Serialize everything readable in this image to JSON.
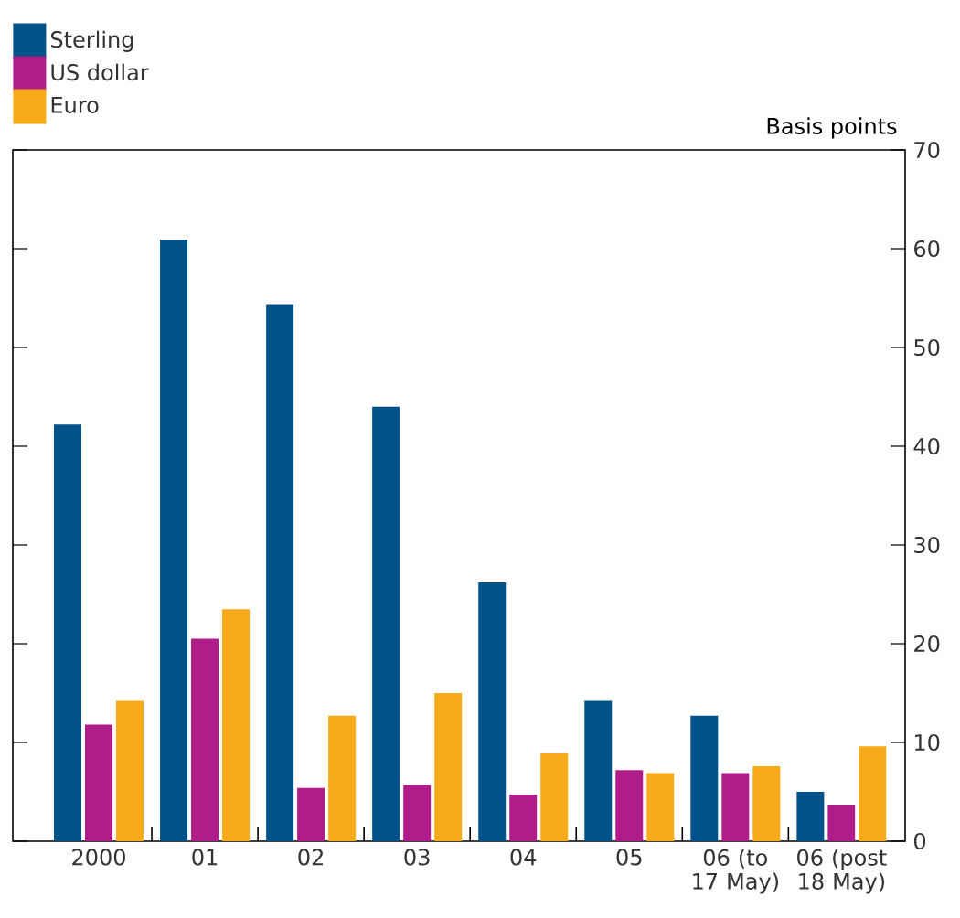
{
  "chart_data": {
    "type": "bar",
    "ylabel": "Basis points",
    "categories": [
      "2000",
      "01",
      "02",
      "03",
      "04",
      "05",
      "06 (to 17 May)",
      "06 (post 18 May)"
    ],
    "series": [
      {
        "name": "Sterling",
        "color": "#005289",
        "values": [
          42.2,
          60.9,
          54.3,
          44.0,
          26.2,
          14.2,
          12.7,
          5.0
        ]
      },
      {
        "name": "US dollar",
        "color": "#b01c88",
        "values": [
          11.8,
          20.5,
          5.4,
          5.7,
          4.7,
          7.2,
          6.9,
          3.7
        ]
      },
      {
        "name": "Euro",
        "color": "#f8ab1a",
        "values": [
          14.2,
          23.5,
          12.7,
          15.0,
          8.9,
          6.9,
          7.6,
          9.6
        ]
      }
    ],
    "ylim": [
      0,
      70
    ],
    "yticks": [
      0,
      10,
      20,
      30,
      40,
      50,
      60,
      70
    ],
    "grid": false,
    "legend": "top left"
  }
}
